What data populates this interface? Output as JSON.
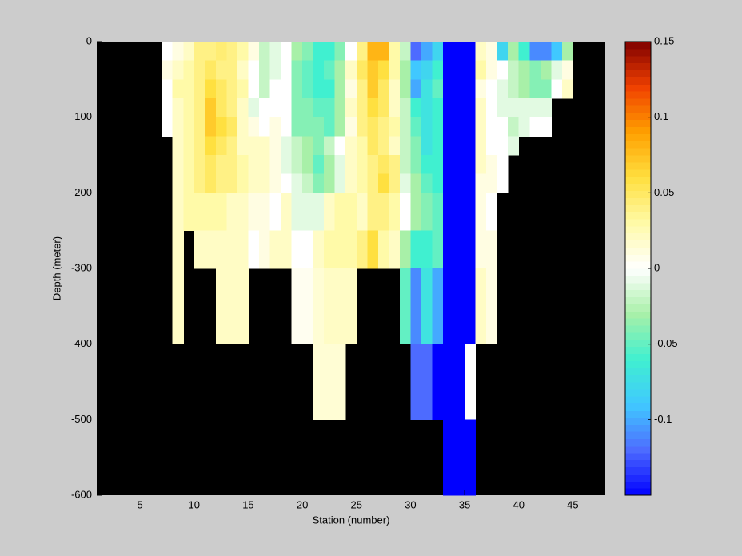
{
  "chart_data": {
    "type": "heatmap",
    "xlabel": "Station (number)",
    "ylabel": "Depth (meter)",
    "xlim": [
      1,
      48
    ],
    "ylim": [
      -600,
      0
    ],
    "xticks": [
      5,
      10,
      15,
      20,
      25,
      30,
      35,
      40,
      45
    ],
    "yticks": [
      0,
      -100,
      -200,
      -300,
      -400,
      -500,
      -600
    ],
    "x_edges": [
      7,
      8,
      9,
      10,
      11,
      12,
      13,
      14,
      15,
      16,
      17,
      18,
      19,
      20,
      21,
      22,
      23,
      24,
      25,
      26,
      27,
      28,
      29,
      30,
      31,
      32,
      33,
      34,
      35,
      36,
      37,
      38,
      39,
      40,
      41,
      42,
      43,
      44,
      45
    ],
    "y_edges": [
      0,
      -25,
      -50,
      -75,
      -100,
      -125,
      -150,
      -175,
      -200,
      -250,
      -300,
      -400,
      -500,
      -600
    ],
    "values": [
      [
        0.0,
        0.01,
        0.02,
        0.04,
        0.04,
        0.045,
        0.04,
        0.03,
        0.01,
        -0.02,
        -0.01,
        0.0,
        -0.03,
        -0.04,
        -0.06,
        -0.06,
        -0.04,
        0.0,
        0.04,
        0.08,
        0.08,
        0.03,
        -0.02,
        -0.12,
        -0.1,
        -0.08,
        -0.15,
        -0.15,
        -0.15,
        0.02,
        0.01,
        -0.08,
        -0.03,
        -0.06,
        -0.11,
        -0.11,
        -0.09,
        -0.03
      ],
      [
        0.01,
        0.02,
        0.03,
        0.04,
        0.05,
        0.04,
        0.04,
        0.02,
        0.0,
        -0.02,
        -0.01,
        0.0,
        -0.04,
        -0.05,
        -0.06,
        -0.05,
        -0.03,
        0.02,
        0.05,
        0.07,
        0.06,
        0.03,
        -0.03,
        -0.09,
        -0.08,
        -0.06,
        -0.15,
        -0.15,
        -0.15,
        0.03,
        0.01,
        0.0,
        -0.02,
        -0.03,
        -0.04,
        -0.03,
        -0.01,
        0.01
      ],
      [
        0.0,
        0.03,
        0.03,
        0.04,
        0.06,
        0.05,
        0.04,
        0.03,
        0.0,
        -0.02,
        0.0,
        0.0,
        -0.04,
        -0.05,
        -0.06,
        -0.06,
        -0.03,
        0.01,
        0.04,
        0.07,
        0.05,
        0.02,
        -0.03,
        -0.1,
        -0.07,
        -0.05,
        -0.15,
        -0.15,
        -0.15,
        0.01,
        0.0,
        -0.01,
        -0.02,
        -0.03,
        -0.04,
        -0.04,
        0.0,
        0.02
      ],
      [
        0.0,
        0.02,
        0.03,
        0.04,
        0.07,
        0.05,
        0.04,
        0.02,
        -0.01,
        0.0,
        0.0,
        0.0,
        -0.04,
        -0.04,
        -0.05,
        -0.05,
        -0.03,
        0.02,
        0.04,
        0.06,
        0.05,
        0.02,
        -0.02,
        -0.06,
        -0.07,
        -0.06,
        -0.15,
        -0.15,
        -0.15,
        0.02,
        0.0,
        -0.01,
        -0.01,
        -0.01,
        -0.01,
        -0.01,
        null,
        null
      ],
      [
        0.0,
        0.02,
        0.03,
        0.04,
        0.07,
        0.06,
        0.05,
        0.02,
        0.01,
        0.0,
        0.01,
        0.0,
        -0.04,
        -0.04,
        -0.04,
        -0.05,
        -0.03,
        0.01,
        0.04,
        0.05,
        0.04,
        0.03,
        -0.02,
        -0.05,
        -0.07,
        -0.06,
        -0.15,
        -0.15,
        -0.15,
        0.02,
        0.0,
        0.0,
        -0.02,
        -0.01,
        0.0,
        0.0,
        null,
        null
      ],
      [
        null,
        0.02,
        0.03,
        0.04,
        0.06,
        0.05,
        0.04,
        0.02,
        0.02,
        0.02,
        0.01,
        -0.01,
        -0.02,
        -0.03,
        -0.04,
        -0.02,
        0.0,
        0.02,
        0.03,
        0.05,
        0.04,
        0.02,
        -0.02,
        -0.04,
        -0.07,
        -0.06,
        -0.15,
        -0.15,
        -0.15,
        0.02,
        0.0,
        0.0,
        -0.01,
        null,
        null,
        null,
        null,
        null
      ],
      [
        null,
        0.02,
        0.03,
        0.04,
        0.05,
        0.04,
        0.04,
        0.03,
        0.02,
        0.02,
        0.01,
        -0.01,
        -0.02,
        -0.03,
        -0.05,
        -0.03,
        -0.01,
        0.02,
        0.03,
        0.04,
        0.05,
        0.04,
        -0.02,
        -0.04,
        -0.06,
        -0.06,
        -0.15,
        -0.15,
        -0.15,
        0.02,
        0.01,
        0.0,
        null,
        null,
        null,
        null,
        null,
        null
      ],
      [
        null,
        0.02,
        0.03,
        0.04,
        0.05,
        0.04,
        0.04,
        0.03,
        0.02,
        0.02,
        0.01,
        0.0,
        -0.01,
        -0.02,
        -0.04,
        -0.03,
        -0.01,
        0.02,
        0.03,
        0.04,
        0.06,
        0.04,
        -0.01,
        -0.03,
        -0.05,
        -0.06,
        -0.15,
        -0.15,
        -0.15,
        0.01,
        0.01,
        0.0,
        null,
        null,
        null,
        null,
        null,
        null
      ],
      [
        null,
        0.02,
        0.03,
        0.03,
        0.03,
        0.03,
        0.02,
        0.02,
        0.01,
        0.01,
        0.0,
        0.02,
        -0.01,
        -0.01,
        -0.01,
        0.02,
        0.03,
        0.03,
        0.02,
        0.04,
        0.04,
        0.03,
        0.0,
        -0.03,
        -0.04,
        -0.05,
        -0.15,
        -0.15,
        -0.15,
        0.01,
        0.0,
        null,
        null,
        null,
        null,
        null,
        null,
        null
      ],
      [
        null,
        0.02,
        null,
        0.02,
        0.02,
        0.02,
        0.02,
        0.02,
        0.0,
        0.01,
        0.02,
        0.02,
        0.0,
        0.0,
        0.02,
        0.03,
        0.03,
        0.03,
        0.04,
        0.06,
        0.03,
        0.02,
        -0.03,
        -0.06,
        -0.06,
        -0.05,
        -0.15,
        -0.15,
        -0.15,
        0.01,
        0.01,
        null,
        null,
        null,
        null,
        null,
        null,
        null
      ],
      [
        null,
        0.02,
        null,
        null,
        null,
        0.02,
        0.02,
        0.02,
        null,
        null,
        null,
        null,
        0.005,
        0.005,
        0.015,
        0.02,
        0.02,
        0.02,
        null,
        null,
        null,
        null,
        -0.05,
        -0.11,
        -0.07,
        -0.1,
        -0.15,
        -0.15,
        -0.15,
        0.02,
        0.01,
        null,
        null,
        null,
        null,
        null,
        null,
        null
      ],
      [
        null,
        null,
        null,
        null,
        null,
        null,
        null,
        null,
        null,
        null,
        null,
        null,
        null,
        null,
        0.015,
        0.015,
        0.015,
        null,
        null,
        null,
        null,
        null,
        null,
        -0.12,
        -0.12,
        -0.15,
        -0.15,
        -0.15,
        0.0,
        null,
        null,
        null,
        null,
        null,
        null,
        null,
        null,
        null
      ],
      [
        null,
        null,
        null,
        null,
        null,
        null,
        null,
        null,
        null,
        null,
        null,
        null,
        null,
        null,
        null,
        null,
        null,
        null,
        null,
        null,
        null,
        null,
        null,
        null,
        null,
        null,
        -0.15,
        -0.15,
        -0.15,
        null,
        null,
        null,
        null,
        null,
        null,
        null,
        null,
        null
      ]
    ],
    "clim": [
      -0.15,
      0.15
    ],
    "colorbar_ticks": [
      0.15,
      0.1,
      0.05,
      0,
      -0.05,
      -0.1
    ],
    "colormap": [
      "#0000ff",
      "#4d6bff",
      "#40c8ff",
      "#40f0d0",
      "#a8f0a8",
      "#ffffff",
      "#fffaa8",
      "#ffe040",
      "#ffa000",
      "#f04000",
      "#800000"
    ],
    "background": "#000000"
  }
}
